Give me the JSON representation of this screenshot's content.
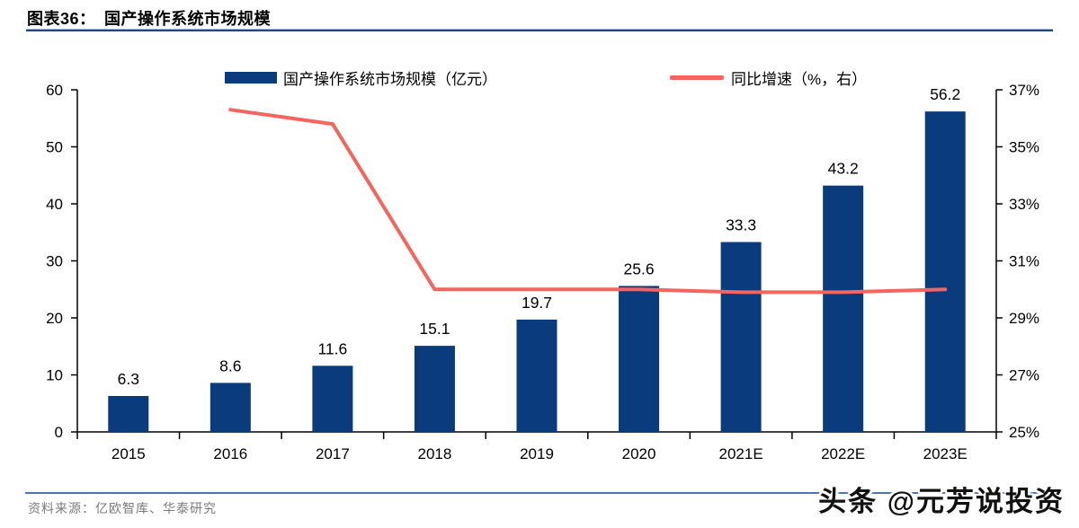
{
  "header": {
    "title": "图表36：　国产操作系统市场规模"
  },
  "footer": {
    "source": "资料来源：亿欧智库、华泰研究",
    "watermark": "头条 @元芳说投资"
  },
  "colors": {
    "bar": "#0a3b7c",
    "line": "#f4655f",
    "axis": "#000000",
    "tick_text": "#000000",
    "title_rule_light": "#9fb6d9",
    "title_rule_dark": "#24457e",
    "footer_rule": "#4a74b9",
    "source_text": "#7a7a7a",
    "watermark_text": "#111111"
  },
  "chart_data": {
    "type": "bar+line",
    "title": "国产操作系统市场规模",
    "categories": [
      "2015",
      "2016",
      "2017",
      "2018",
      "2019",
      "2020",
      "2021E",
      "2022E",
      "2023E"
    ],
    "series": [
      {
        "name": "国产操作系统市场规模（亿元）",
        "type": "bar",
        "axis": "left",
        "unit": "亿元",
        "values": [
          6.3,
          8.6,
          11.6,
          15.1,
          19.7,
          25.6,
          33.3,
          43.2,
          56.2
        ]
      },
      {
        "name": "同比增速（%，右）",
        "type": "line",
        "axis": "right",
        "unit": "%",
        "values": [
          null,
          36.3,
          35.8,
          30.0,
          30.0,
          30.0,
          29.9,
          29.9,
          30.0
        ]
      }
    ],
    "left_axis": {
      "min": 0,
      "max": 60,
      "step": 10,
      "tick_labels": [
        "0",
        "10",
        "20",
        "30",
        "40",
        "50",
        "60"
      ]
    },
    "right_axis": {
      "min": 25,
      "max": 37,
      "step": 2,
      "tick_labels": [
        "25%",
        "27%",
        "29%",
        "31%",
        "33%",
        "35%",
        "37%"
      ]
    },
    "grid": false,
    "legend_position": "top-center",
    "bar_data_labels": true
  }
}
